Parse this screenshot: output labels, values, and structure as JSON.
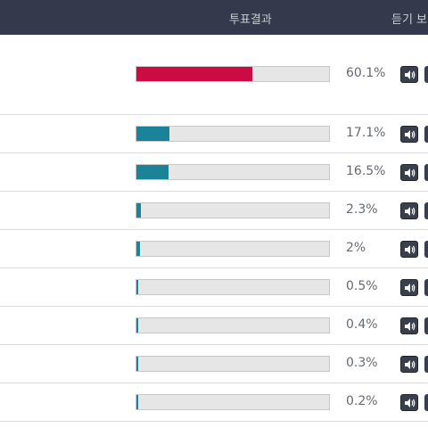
{
  "header": {
    "result_label": "투표결과",
    "listen_label": "듣기 보"
  },
  "colors": {
    "header_bg": "#343a4b",
    "winner_bar": "#cc0a44",
    "other_bar": "#1a8398",
    "track": "#e6e6e6"
  },
  "rows": [
    {
      "percent": 60.1,
      "label": "60.1%",
      "winner": true
    },
    {
      "percent": 17.1,
      "label": "17.1%",
      "winner": false
    },
    {
      "percent": 16.5,
      "label": "16.5%",
      "winner": false
    },
    {
      "percent": 2.3,
      "label": "2.3%",
      "winner": false
    },
    {
      "percent": 2,
      "label": "2%",
      "winner": false
    },
    {
      "percent": 0.5,
      "label": "0.5%",
      "winner": false
    },
    {
      "percent": 0.4,
      "label": "0.4%",
      "winner": false
    },
    {
      "percent": 0.3,
      "label": "0.3%",
      "winner": false
    },
    {
      "percent": 0.2,
      "label": "0.2%",
      "winner": false
    }
  ],
  "icons": {
    "listen": "speaker-icon"
  }
}
